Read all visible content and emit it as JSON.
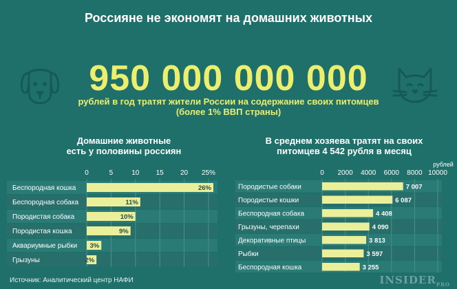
{
  "header": {
    "title": "Россияне не экономят на домашних животных",
    "big_number": "950 000 000 000",
    "big_sub_line1": "рублей в год тратят жители России на содержание своих питомцев",
    "big_sub_line2": "(более 1% ВВП страны)"
  },
  "footer": {
    "source": "Источник: Аналитический центр НАФИ",
    "logo": "INSIDER",
    "logo_suffix": "PRO"
  },
  "icons": {
    "left": "dog-icon",
    "right": "cat-icon"
  },
  "colors": {
    "background": "#1f6f6b",
    "row": "#2a7a76",
    "row_alt": "#286f6c",
    "bar": "#ecef9a",
    "accent": "#ecef6e"
  },
  "chart_data": [
    {
      "type": "bar",
      "orientation": "horizontal",
      "title_line1": "Домашние животные",
      "title_line2": "есть у половины россиян",
      "categories": [
        "Беспородная кошка",
        "Беспородная собака",
        "Породистая собака",
        "Породистая кошка",
        "Аквариумные рыбки",
        "Грызуны"
      ],
      "values": [
        26,
        11,
        10,
        9,
        3,
        2
      ],
      "value_labels": [
        "26%",
        "11%",
        "10%",
        "9%",
        "3%",
        "2%"
      ],
      "xticks": [
        "0",
        "5",
        "10",
        "15",
        "20",
        "25%"
      ],
      "xlim": [
        0,
        26
      ],
      "grid": true
    },
    {
      "type": "bar",
      "orientation": "horizontal",
      "title_line1": "В среднем хозяева тратят на своих",
      "title_line2": "питомцев 4 542 рубля в месяц",
      "unit_label": "рублей",
      "categories": [
        "Породистые собаки",
        "Породистые кошки",
        "Беспородная собака",
        "Грызуны, черепахи",
        "Декоративные птицы",
        "Рыбки",
        "Беспородная кошка"
      ],
      "values": [
        7007,
        6087,
        4408,
        4090,
        3813,
        3597,
        3255
      ],
      "value_labels": [
        "7 007",
        "6 087",
        "4 408",
        "4 090",
        "3 813",
        "3 597",
        "3 255"
      ],
      "xticks": [
        "0",
        "2000",
        "4000",
        "6000",
        "8000",
        "10000"
      ],
      "xlim": [
        0,
        10000
      ],
      "grid": true
    }
  ]
}
